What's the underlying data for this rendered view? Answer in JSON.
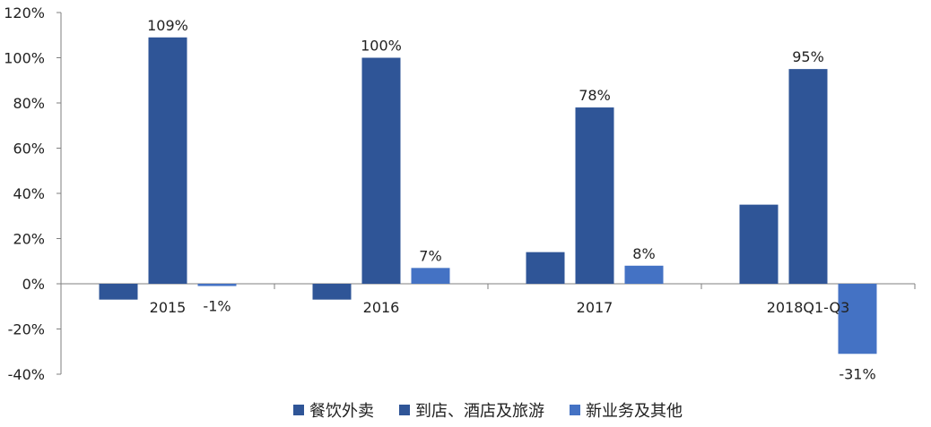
{
  "chart_data": {
    "type": "bar",
    "categories": [
      "2015",
      "2016",
      "2017",
      "2018Q1-Q3"
    ],
    "series": [
      {
        "name": "餐饮外卖",
        "color": "#2f5597",
        "values": [
          -7,
          -7,
          14,
          35
        ]
      },
      {
        "name": "到店、酒店及旅游",
        "color": "#2f5597",
        "values": [
          109,
          100,
          78,
          95
        ]
      },
      {
        "name": "新业务及其他",
        "color": "#4472c4",
        "values": [
          -1,
          7,
          8,
          -31
        ]
      }
    ],
    "data_labels": [
      {
        "series": 1,
        "category": 0,
        "text": "109%"
      },
      {
        "series": 2,
        "category": 0,
        "text": "-1%"
      },
      {
        "series": 1,
        "category": 1,
        "text": "100%"
      },
      {
        "series": 2,
        "category": 1,
        "text": "7%"
      },
      {
        "series": 1,
        "category": 2,
        "text": "78%"
      },
      {
        "series": 2,
        "category": 2,
        "text": "8%"
      },
      {
        "series": 1,
        "category": 3,
        "text": "95%"
      },
      {
        "series": 2,
        "category": 3,
        "text": "-31%"
      }
    ],
    "y_ticks": [
      "-40%",
      "-20%",
      "0%",
      "20%",
      "40%",
      "60%",
      "80%",
      "100%",
      "120%"
    ],
    "ylim": [
      -40,
      120
    ],
    "grid": false,
    "legend_position": "bottom"
  }
}
